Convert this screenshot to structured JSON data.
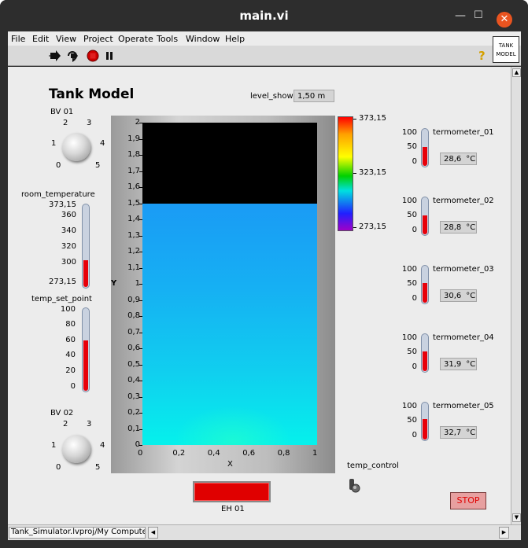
{
  "window": {
    "title": "main.vi",
    "minimize": "—",
    "maximize": "☐",
    "close": "✕"
  },
  "menu": [
    "File",
    "Edit",
    "View",
    "Project",
    "Operate",
    "Tools",
    "Window",
    "Help"
  ],
  "tank_icon": {
    "line1": "TANK",
    "line2": "MODEL"
  },
  "help_symbol": "?",
  "panel": {
    "title": "Tank Model",
    "level_show": {
      "label": "level_show",
      "value": "1,50 m"
    },
    "bv01": {
      "label": "BV 01",
      "marks": [
        "0",
        "1",
        "2",
        "3",
        "4",
        "5"
      ],
      "value": 0
    },
    "bv02": {
      "label": "BV 02",
      "marks": [
        "0",
        "1",
        "2",
        "3",
        "4",
        "5"
      ],
      "value": 0
    },
    "room_temperature": {
      "label": "room_temperature",
      "ticks": [
        "373,15",
        "360",
        "340",
        "320",
        "300",
        "273,15"
      ],
      "value": 300
    },
    "temp_set_point": {
      "label": "temp_set_point",
      "ticks": [
        "100",
        "80",
        "60",
        "40",
        "20",
        "0"
      ],
      "value": 60
    },
    "graph": {
      "ylabel": "Y",
      "xlabel": "X",
      "yticks": [
        "2",
        "1,9",
        "1,8",
        "1,7",
        "1,6",
        "1,5",
        "1,4",
        "1,3",
        "1,2",
        "1,1",
        "1",
        "0,9",
        "0,8",
        "0,7",
        "0,6",
        "0,5",
        "0,4",
        "0,3",
        "0,2",
        "0,1",
        "0"
      ],
      "xticks": [
        "0",
        "0,2",
        "0,4",
        "0,6",
        "0,8",
        "1"
      ],
      "level": 1.5,
      "ymax": 2
    },
    "colorscale": {
      "ticks": [
        "373,15",
        "323,15",
        "273,15"
      ]
    },
    "thermometers": [
      {
        "label": "termometer_01",
        "value": "28,6",
        "unit": "°C",
        "ticks": [
          "100",
          "50",
          "0"
        ],
        "level": 28.6
      },
      {
        "label": "termometer_02",
        "value": "28,8",
        "unit": "°C",
        "ticks": [
          "100",
          "50",
          "0"
        ],
        "level": 28.8
      },
      {
        "label": "termometer_03",
        "value": "30,6",
        "unit": "°C",
        "ticks": [
          "100",
          "50",
          "0"
        ],
        "level": 30.6
      },
      {
        "label": "termometer_04",
        "value": "31,9",
        "unit": "°C",
        "ticks": [
          "100",
          "50",
          "0"
        ],
        "level": 31.9
      },
      {
        "label": "termometer_05",
        "value": "32,7",
        "unit": "°C",
        "ticks": [
          "100",
          "50",
          "0"
        ],
        "level": 32.7
      }
    ],
    "temp_control": {
      "label": "temp_control",
      "state": "off"
    },
    "eh01": {
      "label": "EH 01",
      "state": "on",
      "color": "#e00000"
    },
    "stop": {
      "label": "STOP"
    }
  },
  "status": {
    "path": "Tank_Simulator.lvproj/My Computer"
  }
}
